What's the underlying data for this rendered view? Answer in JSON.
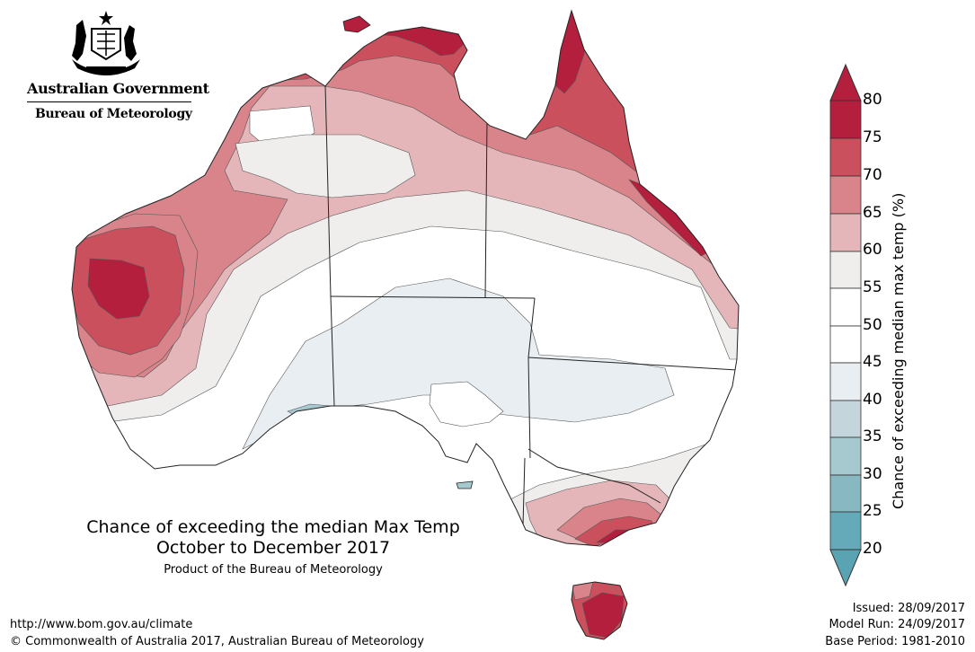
{
  "header": {
    "gov_name": "Australian Government",
    "agency_name": "Bureau of Meteorology",
    "crest_icon": "coat-of-arms-icon"
  },
  "map": {
    "title_line1": "Chance of exceeding the median Max Temp",
    "title_line2": "October to December 2017",
    "product_text": "Product of the Bureau of Meteorology"
  },
  "colorbar": {
    "label": "Chance of exceeding median max temp (%)",
    "ticks": [
      "80",
      "75",
      "70",
      "65",
      "60",
      "55",
      "50",
      "45",
      "40",
      "35",
      "30",
      "25",
      "20"
    ],
    "colors": [
      "#b41f3e",
      "#c9505c",
      "#d8848a",
      "#e5b6b9",
      "#efeeec",
      "#ffffff",
      "#ffffff",
      "#e8eef1",
      "#c4d6dc",
      "#a6c8cf",
      "#88b8c2",
      "#64aab8"
    ],
    "over_color": "#b41f3e",
    "under_color": "#5aa3b2"
  },
  "footer": {
    "url": "http://www.bom.gov.au/climate",
    "copyright": "© Commonwealth of Australia 2017, Australian Bureau of Meteorology",
    "issued": "Issued: 28/09/2017",
    "model_run": "Model Run: 24/09/2017",
    "base_period": "Base Period: 1981-2010"
  }
}
